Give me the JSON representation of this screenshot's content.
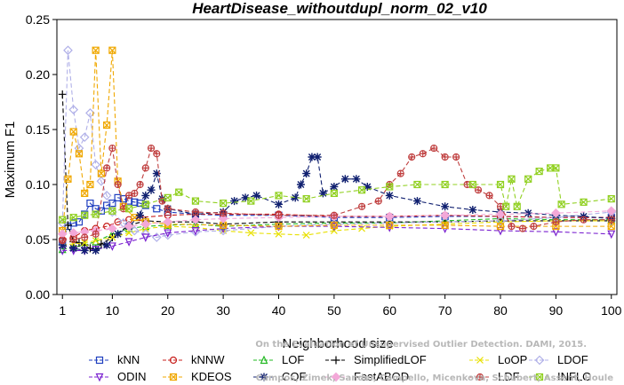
{
  "chart_data": {
    "type": "line",
    "title": "HeartDisease_withoutdupl_norm_02_v10",
    "xlabel": "Neighborhood size",
    "ylabel": "Maximum F1",
    "xlim": [
      0,
      101
    ],
    "ylim": [
      0,
      0.25
    ],
    "xticks": [
      1,
      10,
      20,
      30,
      40,
      50,
      60,
      70,
      80,
      90,
      100
    ],
    "yticks": [
      "0.00",
      "0.05",
      "0.10",
      "0.15",
      "0.20",
      "0.25"
    ],
    "grid": false,
    "legend_position": "bottom",
    "watermark_lines": [
      "Campos, Zimek, Sander, Campello, Micenkova, Schubert, Assent, Houle",
      "On the Evaluation of Unsupervised Outlier Detection. DAMI, 2015."
    ],
    "series": [
      {
        "name": "kNN",
        "color": "#1f3fbf",
        "marker": "square",
        "dash": "5,3",
        "x": [
          1,
          2,
          3,
          4,
          5,
          6,
          7,
          8,
          9,
          10,
          11,
          12,
          13,
          14,
          15,
          16,
          18,
          20,
          25,
          30,
          40,
          50,
          60,
          70,
          80,
          90,
          100
        ],
        "y": [
          0.048,
          0.062,
          0.065,
          0.066,
          0.073,
          0.083,
          0.078,
          0.076,
          0.081,
          0.083,
          0.088,
          0.087,
          0.085,
          0.084,
          0.083,
          0.081,
          0.078,
          0.075,
          0.073,
          0.072,
          0.072,
          0.07,
          0.07,
          0.071,
          0.071,
          0.07,
          0.07
        ]
      },
      {
        "name": "kNNW",
        "color": "#c8201e",
        "marker": "circle",
        "dash": "5,3",
        "x": [
          1,
          3,
          5,
          7,
          9,
          11,
          13,
          15,
          20,
          25,
          30,
          40,
          50,
          60,
          70,
          80,
          90,
          100
        ],
        "y": [
          0.05,
          0.052,
          0.058,
          0.06,
          0.062,
          0.066,
          0.068,
          0.07,
          0.072,
          0.073,
          0.073,
          0.073,
          0.071,
          0.071,
          0.072,
          0.071,
          0.07,
          0.07
        ]
      },
      {
        "name": "LOF",
        "color": "#22b822",
        "marker": "triangle",
        "dash": "5,3",
        "x": [
          1,
          3,
          5,
          7,
          10,
          13,
          16,
          20,
          25,
          30,
          40,
          50,
          60,
          70,
          80,
          90,
          100
        ],
        "y": [
          0.041,
          0.043,
          0.045,
          0.048,
          0.055,
          0.06,
          0.062,
          0.063,
          0.064,
          0.062,
          0.064,
          0.065,
          0.065,
          0.067,
          0.069,
          0.068,
          0.068
        ]
      },
      {
        "name": "SimplifiedLOF",
        "color": "#000000",
        "marker": "plus",
        "dash": "5,3",
        "x": [
          1,
          2,
          3,
          4,
          5,
          6,
          7,
          8,
          10,
          13,
          16,
          20,
          25,
          30,
          40,
          50,
          60,
          70,
          80,
          90,
          100
        ],
        "y": [
          0.182,
          0.063,
          0.048,
          0.047,
          0.045,
          0.042,
          0.041,
          0.046,
          0.052,
          0.063,
          0.067,
          0.066,
          0.066,
          0.064,
          0.066,
          0.066,
          0.066,
          0.066,
          0.067,
          0.067,
          0.067
        ]
      },
      {
        "name": "LoOP",
        "color": "#e8e000",
        "marker": "x",
        "dash": "5,3",
        "x": [
          1,
          3,
          5,
          7,
          10,
          13,
          16,
          20,
          25,
          30,
          35,
          40,
          45,
          50,
          55,
          60,
          70,
          80,
          90,
          100
        ],
        "y": [
          0.045,
          0.046,
          0.047,
          0.049,
          0.052,
          0.056,
          0.06,
          0.062,
          0.061,
          0.058,
          0.056,
          0.055,
          0.054,
          0.058,
          0.06,
          0.062,
          0.064,
          0.066,
          0.067,
          0.067
        ]
      },
      {
        "name": "LDOF",
        "color": "#b0b0e8",
        "marker": "diamond",
        "dash": "5,3",
        "x": [
          1,
          2,
          3,
          4,
          5,
          6,
          7,
          8,
          9,
          10,
          12,
          14,
          16,
          18,
          20,
          25,
          30,
          40,
          50,
          60,
          70,
          80,
          90,
          100
        ],
        "y": [
          0.065,
          0.222,
          0.168,
          0.133,
          0.143,
          0.165,
          0.118,
          0.103,
          0.09,
          0.075,
          0.065,
          0.058,
          0.055,
          0.052,
          0.054,
          0.057,
          0.058,
          0.062,
          0.064,
          0.065,
          0.066,
          0.067,
          0.07,
          0.075
        ]
      },
      {
        "name": "ODIN",
        "color": "#7a20d0",
        "marker": "down-triangle",
        "dash": "5,3",
        "x": [
          1,
          3,
          5,
          7,
          10,
          13,
          16,
          20,
          25,
          30,
          40,
          50,
          60,
          70,
          80,
          90,
          100
        ],
        "y": [
          0.04,
          0.04,
          0.04,
          0.041,
          0.044,
          0.048,
          0.052,
          0.056,
          0.058,
          0.06,
          0.062,
          0.062,
          0.061,
          0.06,
          0.058,
          0.057,
          0.055
        ]
      },
      {
        "name": "KDEOS",
        "color": "#f0a800",
        "marker": "boxx",
        "dash": "5,3",
        "x": [
          1,
          2,
          3,
          4,
          5,
          6,
          7,
          8,
          9,
          10,
          11,
          12,
          14,
          16,
          20,
          30,
          40,
          50,
          60,
          70,
          80,
          90,
          100
        ],
        "y": [
          0.058,
          0.105,
          0.148,
          0.128,
          0.092,
          0.1,
          0.222,
          0.11,
          0.154,
          0.222,
          0.103,
          0.08,
          0.07,
          0.066,
          0.064,
          0.063,
          0.062,
          0.063,
          0.063,
          0.063,
          0.062,
          0.062,
          0.062
        ]
      },
      {
        "name": "COF",
        "color": "#102070",
        "marker": "star",
        "dash": "5,3",
        "x": [
          1,
          3,
          5,
          7,
          9,
          11,
          13,
          15,
          16,
          17,
          18,
          19,
          20,
          25,
          30,
          32,
          34,
          36,
          40,
          43,
          44,
          45,
          46,
          47,
          48,
          50,
          52,
          54,
          56,
          60,
          65,
          70,
          75,
          80,
          85,
          90,
          95,
          100
        ],
        "y": [
          0.045,
          0.042,
          0.04,
          0.04,
          0.045,
          0.055,
          0.062,
          0.072,
          0.09,
          0.095,
          0.11,
          0.087,
          0.078,
          0.073,
          0.075,
          0.085,
          0.088,
          0.09,
          0.082,
          0.088,
          0.1,
          0.11,
          0.125,
          0.125,
          0.092,
          0.098,
          0.105,
          0.105,
          0.098,
          0.09,
          0.085,
          0.08,
          0.077,
          0.075,
          0.074,
          0.072,
          0.071,
          0.069
        ]
      },
      {
        "name": "FastABOD",
        "color": "#f3a8d8",
        "marker": "diamond-filled",
        "dash": "5,3",
        "x": [
          1,
          3,
          5,
          7,
          10,
          13,
          16,
          20,
          25,
          30,
          40,
          50,
          60,
          70,
          80,
          90,
          100
        ],
        "y": [
          0.055,
          0.056,
          0.057,
          0.058,
          0.06,
          0.062,
          0.064,
          0.066,
          0.068,
          0.069,
          0.07,
          0.071,
          0.071,
          0.072,
          0.073,
          0.074,
          0.076
        ]
      },
      {
        "name": "LDF",
        "color": "#c04040",
        "marker": "circle-plus",
        "dash": "5,3",
        "x": [
          1,
          3,
          5,
          7,
          9,
          10,
          11,
          12,
          13,
          14,
          15,
          16,
          17,
          18,
          19,
          20,
          25,
          30,
          40,
          50,
          55,
          58,
          60,
          62,
          64,
          66,
          68,
          70,
          72,
          74,
          76,
          78,
          80,
          82,
          84,
          86,
          90,
          95,
          100
        ],
        "y": [
          0.049,
          0.05,
          0.052,
          0.055,
          0.115,
          0.133,
          0.1,
          0.078,
          0.09,
          0.092,
          0.1,
          0.115,
          0.133,
          0.128,
          0.085,
          0.078,
          0.075,
          0.074,
          0.072,
          0.072,
          0.08,
          0.085,
          0.1,
          0.11,
          0.125,
          0.128,
          0.133,
          0.125,
          0.125,
          0.1,
          0.095,
          0.09,
          0.08,
          0.062,
          0.06,
          0.062,
          0.066,
          0.068,
          0.068
        ]
      },
      {
        "name": "INFLO",
        "color": "#90d020",
        "marker": "boxx",
        "dash": "5,3",
        "x": [
          1,
          3,
          5,
          7,
          10,
          13,
          16,
          20,
          22,
          25,
          30,
          35,
          40,
          45,
          50,
          55,
          60,
          65,
          70,
          75,
          80,
          81,
          82,
          83,
          85,
          87,
          89,
          90,
          91,
          95,
          100
        ],
        "y": [
          0.068,
          0.07,
          0.072,
          0.073,
          0.076,
          0.078,
          0.082,
          0.088,
          0.093,
          0.085,
          0.083,
          0.085,
          0.09,
          0.087,
          0.092,
          0.095,
          0.098,
          0.1,
          0.1,
          0.1,
          0.1,
          0.08,
          0.105,
          0.08,
          0.105,
          0.112,
          0.115,
          0.115,
          0.082,
          0.084,
          0.087
        ]
      }
    ]
  }
}
